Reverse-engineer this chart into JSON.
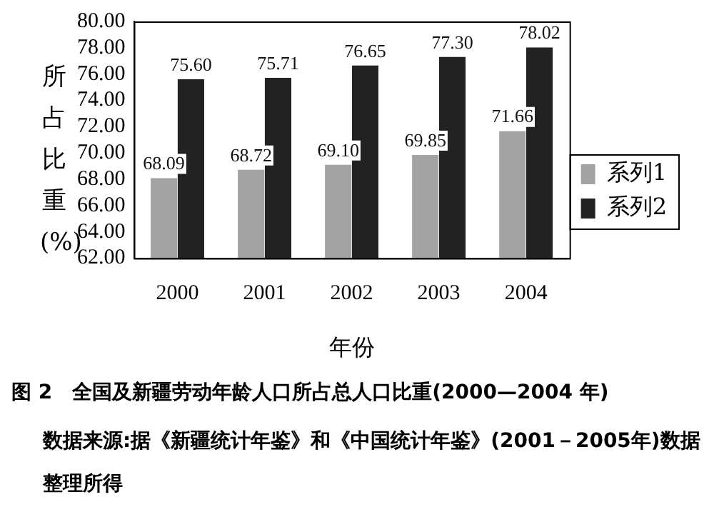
{
  "chart_data": {
    "type": "bar",
    "title": "图 2　全国及新疆劳动年龄人口所占总人口比重(2000—2004 年)",
    "xlabel": "年份",
    "ylabel": "所占比重(%)",
    "categories": [
      "2000",
      "2001",
      "2002",
      "2003",
      "2004"
    ],
    "series": [
      {
        "name": "系列1",
        "color": "#a3a3a3",
        "values": [
          68.09,
          68.72,
          69.1,
          69.85,
          71.66
        ],
        "value_labels": [
          "68.09",
          "68.72",
          "69.10",
          "69.85",
          "71.66"
        ]
      },
      {
        "name": "系列2",
        "color": "#222222",
        "values": [
          75.6,
          75.71,
          76.65,
          77.3,
          78.02
        ],
        "value_labels": [
          "75.60",
          "75.71",
          "76.65",
          "77.30",
          "78.02"
        ]
      }
    ],
    "ylim": [
      62,
      80
    ],
    "yticks": [
      {
        "value": 62,
        "label": "62.00"
      },
      {
        "value": 64,
        "label": "64.00"
      },
      {
        "value": 66,
        "label": "66.00"
      },
      {
        "value": 68,
        "label": "68.00"
      },
      {
        "value": 70,
        "label": "70.00"
      },
      {
        "value": 72,
        "label": "72.00"
      },
      {
        "value": 74,
        "label": "74.00"
      },
      {
        "value": 76,
        "label": "76.00"
      },
      {
        "value": 78,
        "label": "78.00"
      },
      {
        "value": 80,
        "label": "80.00"
      }
    ],
    "grid": false,
    "legend": "right",
    "annotations": [
      "数据来源:据《新疆统计年鉴》和《中国统计年鉴》(2001－2005年)数据整理所得"
    ]
  }
}
